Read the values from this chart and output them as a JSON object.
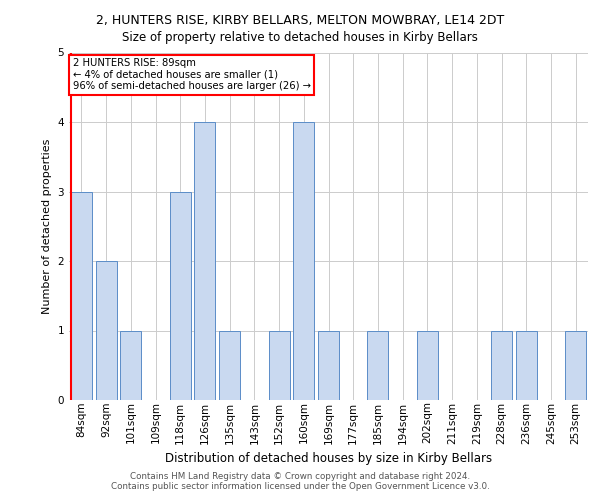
{
  "title1": "2, HUNTERS RISE, KIRBY BELLARS, MELTON MOWBRAY, LE14 2DT",
  "title2": "Size of property relative to detached houses in Kirby Bellars",
  "xlabel": "Distribution of detached houses by size in Kirby Bellars",
  "ylabel": "Number of detached properties",
  "footnote1": "Contains HM Land Registry data © Crown copyright and database right 2024.",
  "footnote2": "Contains public sector information licensed under the Open Government Licence v3.0.",
  "categories": [
    "84sqm",
    "92sqm",
    "101sqm",
    "109sqm",
    "118sqm",
    "126sqm",
    "135sqm",
    "143sqm",
    "152sqm",
    "160sqm",
    "169sqm",
    "177sqm",
    "185sqm",
    "194sqm",
    "202sqm",
    "211sqm",
    "219sqm",
    "228sqm",
    "236sqm",
    "245sqm",
    "253sqm"
  ],
  "values": [
    3,
    2,
    1,
    0,
    3,
    4,
    1,
    0,
    1,
    4,
    1,
    0,
    1,
    0,
    1,
    0,
    0,
    1,
    1,
    0,
    1
  ],
  "bar_color": "#c9d9f0",
  "bar_edge_color": "#5b8dc8",
  "annotation_line1": "2 HUNTERS RISE: 89sqm",
  "annotation_line2": "← 4% of detached houses are smaller (1)",
  "annotation_line3": "96% of semi-detached houses are larger (26) →",
  "annotation_box_color": "white",
  "annotation_box_edge_color": "red",
  "vline_color": "red",
  "vline_x_idx": 0,
  "ylim": [
    0,
    5
  ],
  "yticks": [
    0,
    1,
    2,
    3,
    4,
    5
  ],
  "bg_color": "white",
  "grid_color": "#cccccc",
  "title1_fontsize": 9.0,
  "title2_fontsize": 8.5,
  "xlabel_fontsize": 8.5,
  "ylabel_fontsize": 8.0,
  "tick_fontsize": 7.5,
  "annotation_fontsize": 7.2,
  "footnote_fontsize": 6.3
}
